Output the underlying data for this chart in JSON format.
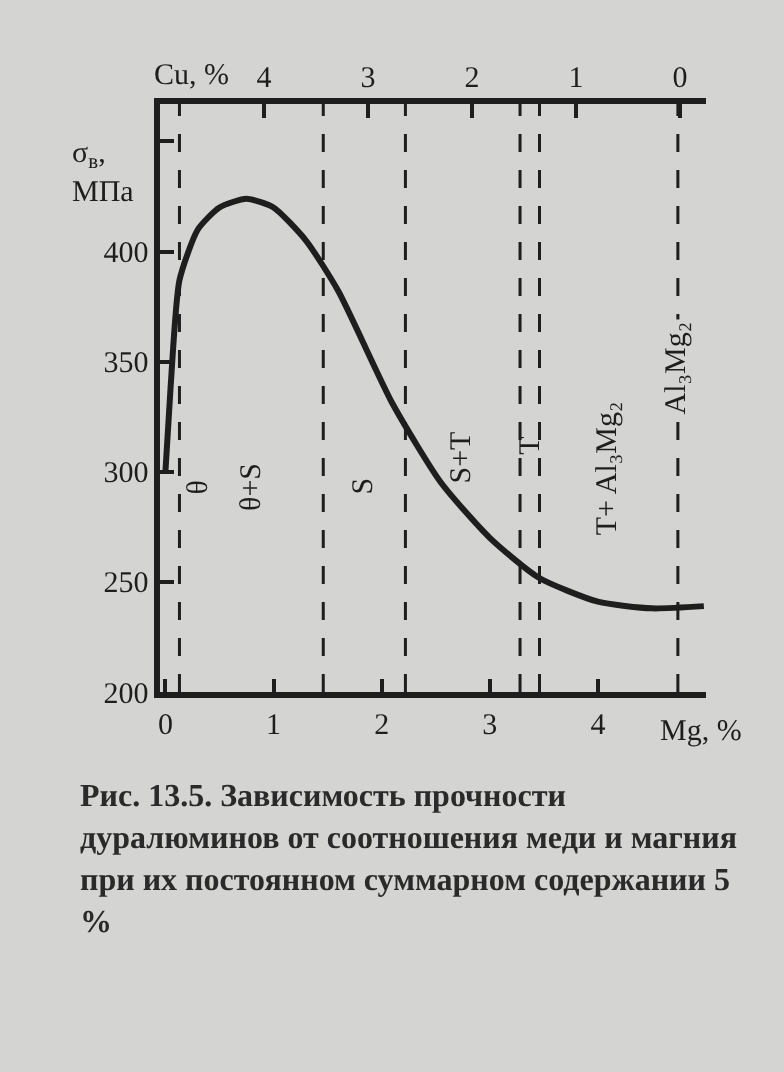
{
  "chart_data": {
    "type": "line",
    "xlabel": "Mg, %",
    "ylabel": "σ$_{в}$, МПа",
    "x2label": "Cu, %",
    "x": [
      0,
      0.05,
      0.13,
      0.3,
      0.5,
      0.75,
      1.0,
      1.3,
      1.6,
      2.1,
      2.55,
      3.0,
      3.45,
      4.0,
      4.5,
      4.98
    ],
    "series": [
      {
        "color": "#1e1e1e",
        "values": [
          300,
          340,
          387,
          410,
          420,
          424,
          420,
          405,
          382,
          331,
          295,
          270,
          252,
          241,
          238,
          239
        ]
      }
    ],
    "xlim": [
      -0.05,
      5.0
    ],
    "xticks": [
      0,
      1,
      2,
      3,
      4
    ],
    "x2lim": [
      5.0,
      -0.25
    ],
    "x2ticks": [
      4,
      3,
      2,
      1,
      0
    ],
    "ylim": [
      200,
      467
    ],
    "yticks": [
      200,
      250,
      300,
      350,
      400,
      {
        "value": 450,
        "label": null
      }
    ],
    "ref_lines": [
      {
        "axis": "x",
        "value": 0.13,
        "color": "#1e1e1e",
        "line_style": "dashed",
        "label": "θ"
      },
      {
        "axis": "x",
        "value": 1.46,
        "color": "#1e1e1e",
        "line_style": "dashed"
      },
      {
        "axis": "x",
        "value": 2.22,
        "color": "#1e1e1e",
        "line_style": "dashed"
      },
      {
        "axis": "x",
        "value": 3.28,
        "color": "#1e1e1e",
        "line_style": "dashed"
      },
      {
        "axis": "x",
        "value": 3.46,
        "color": "#1e1e1e",
        "line_style": "dashed"
      },
      {
        "axis": "x",
        "value": 4.74,
        "color": "#1e1e1e",
        "line_style": "dashed",
        "label": "Al₃Mg₂"
      }
    ],
    "annotations": [
      "θ+S",
      "S",
      "S+T",
      "T",
      "T+ Al₃Mg₂",
      "Рис. 13.5.  Зависимость прочности дуралюминов от соотношения меди и магния при их постоянном суммарном содержании 5 %"
    ],
    "grid": false,
    "line_style": "solid",
    "marker": "none"
  }
}
